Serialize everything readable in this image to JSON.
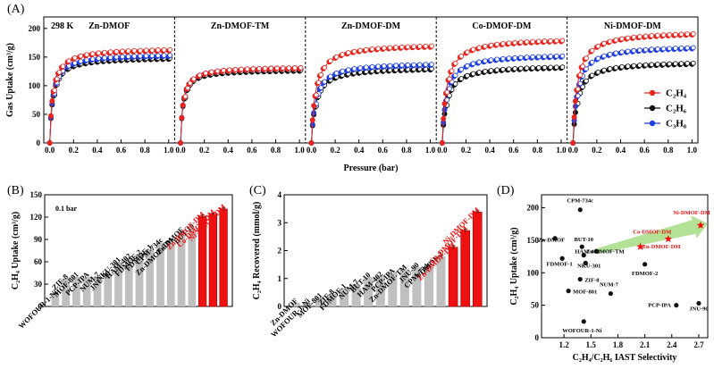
{
  "figure": {
    "panel_A_label": "(A)",
    "panel_B_label": "(B)",
    "panel_C_label": "(C)",
    "panel_D_label": "(D)"
  },
  "colors": {
    "C2H4": "#e8251f",
    "C2H6": "#111111",
    "C3H8": "#1f3fe0",
    "bar_gray": "#c0c0c0",
    "bar_red": "#ee1111",
    "highlight_text": "#ee1111",
    "arrow_green": "#a6dc82"
  },
  "chart_data": [
    {
      "id": "A",
      "type": "scatter",
      "temperature_label": "298 K",
      "xlabel": "Pressure (bar)",
      "ylabel": "Gas Uptake (cm³/g)",
      "xlim": [
        -0.05,
        1.05
      ],
      "ylim": [
        0,
        220
      ],
      "xticks": [
        "0.0",
        "0.2",
        "0.4",
        "0.6",
        "0.8",
        "1.0"
      ],
      "yticks": [
        "0",
        "50",
        "100",
        "150",
        "200"
      ],
      "legend": [
        {
          "label": "C₂H₄",
          "series": "C2H4"
        },
        {
          "label": "C₂H₆",
          "series": "C2H6"
        },
        {
          "label": "C₃H₈",
          "series": "C3H8"
        }
      ],
      "legend_position": "bottom-right",
      "subplots": [
        {
          "title": "Zn-DMOF",
          "isotherms": {
            "C2H4": {
              "q0": 0.02,
              "max": 165,
              "b": 40
            },
            "C2H6": {
              "q0": 0.02,
              "max": 150,
              "b": 40
            },
            "C3H8": {
              "q0": 0.02,
              "max": 155,
              "b": 40
            }
          }
        },
        {
          "title": "Zn-DMOF-TM",
          "isotherms": {
            "C2H4": {
              "q0": 0.02,
              "max": 132,
              "b": 50
            },
            "C2H6": {
              "q0": 0.02,
              "max": 128,
              "b": 50
            },
            "C3H8": {
              "q0": 0.02,
              "max": 132,
              "b": 50
            }
          }
        },
        {
          "title": "Zn-DMOF-DM",
          "isotherms": {
            "C2H4": {
              "q0": 0.02,
              "max": 173,
              "b": 30
            },
            "C2H6": {
              "q0": 0.02,
              "max": 132,
              "b": 30
            },
            "C3H8": {
              "q0": 0.02,
              "max": 140,
              "b": 30
            }
          }
        },
        {
          "title": "Co-DMOF-DM",
          "isotherms": {
            "C2H4": {
              "q0": 0.02,
              "max": 183,
              "b": 30
            },
            "C2H6": {
              "q0": 0.02,
              "max": 135,
              "b": 30
            },
            "C3H8": {
              "q0": 0.02,
              "max": 155,
              "b": 30
            }
          }
        },
        {
          "title": "Ni-DMOF-DM",
          "isotherms": {
            "C2H4": {
              "q0": 0.02,
              "max": 195,
              "b": 30
            },
            "C2H6": {
              "q0": 0.02,
              "max": 142,
              "b": 30
            },
            "C3H8": {
              "q0": 0.02,
              "max": 170,
              "b": 30
            }
          }
        }
      ],
      "pressure_points": [
        0.0,
        0.01,
        0.02,
        0.03,
        0.05,
        0.07,
        0.1,
        0.15,
        0.2,
        0.25,
        0.3,
        0.35,
        0.4,
        0.45,
        0.5,
        0.55,
        0.6,
        0.65,
        0.7,
        0.75,
        0.8,
        0.85,
        0.9,
        0.95,
        1.0
      ]
    },
    {
      "id": "B",
      "type": "bar",
      "annotation": "0.1 bar",
      "ylabel": "C₂H₄ Uptake (cm³/g)",
      "ylim": [
        0,
        150
      ],
      "yticks": [
        "0",
        "30",
        "60",
        "90",
        "120",
        "150"
      ],
      "categories": [
        "WOFOUR-1-Ni",
        "ZIF-8",
        "MOF-801",
        "PCP-IPA",
        "NUM-7",
        "JNU-90",
        "NKU-301",
        "HAM-402",
        "FDMOF-2",
        "FDMOF-1",
        "CPM-734c",
        "Zn-DMOF-TM",
        "Zn-DMOF",
        "BUT-10",
        "Zn-DMOF-DM",
        "Co-DMOF-DM",
        "Ni-DMOF-DM"
      ],
      "values": [
        16,
        37,
        40,
        40,
        40,
        42,
        60,
        65,
        70,
        77,
        86,
        86,
        100,
        105,
        121,
        124,
        131
      ],
      "errors": [
        0,
        0,
        0,
        0,
        0,
        0,
        0,
        0,
        0,
        0,
        0,
        0,
        0,
        0,
        2,
        1.5,
        2
      ],
      "highlight": [
        "Zn-DMOF-DM",
        "Co-DMOF-DM",
        "Ni-DMOF-DM"
      ]
    },
    {
      "id": "C",
      "type": "bar",
      "ylabel": "C₂H₄ Recovered (mmol/g)",
      "ylim": [
        0,
        4
      ],
      "yticks": [
        "0",
        "1",
        "2",
        "3",
        "4"
      ],
      "categories": [
        "Zn-DMOF",
        "WOFOUR-1-Ni",
        "MOF-801",
        "ZIF-8",
        "FDMOF-1",
        "NUM-7",
        "BUT-10",
        "HAM-402",
        "PCP-IPA",
        "Zn-DMOF-TM",
        "JNU-90",
        "CPM-734c",
        "FDMOF-2",
        "Zn-DMOF-DM",
        "Co-DMOF-DM",
        "Ni-DMOF-DM"
      ],
      "values": [
        0.12,
        0.12,
        0.32,
        0.45,
        0.65,
        0.8,
        1.05,
        1.08,
        1.2,
        1.33,
        1.4,
        1.45,
        1.8,
        2.12,
        2.72,
        3.38
      ],
      "errors": [
        0,
        0,
        0,
        0,
        0,
        0,
        0,
        0,
        0,
        0,
        0,
        0,
        0,
        0.06,
        0.06,
        0.05
      ],
      "highlight": [
        "Zn-DMOF-DM",
        "Co-DMOF-DM",
        "Ni-DMOF-DM"
      ]
    },
    {
      "id": "D",
      "type": "scatter",
      "xlabel": "C₂H₄/C₂H₆ IAST Selectivity",
      "ylabel": "C₂H₄ Uptake (cm³/g)",
      "xlim": [
        0.95,
        2.8
      ],
      "ylim": [
        0,
        220
      ],
      "xticks": [
        "1.2",
        "1.5",
        "1.8",
        "2.1",
        "2.4",
        "2.7"
      ],
      "xtick_values": [
        1.2,
        1.5,
        1.8,
        2.1,
        2.4,
        2.7
      ],
      "yticks": [
        "0",
        "50",
        "100",
        "150",
        "200"
      ],
      "ytick_values": [
        0,
        50,
        100,
        150,
        200
      ],
      "points": [
        {
          "name": "CPM-734c",
          "x": 1.38,
          "y": 197
        },
        {
          "name": "BUT-10",
          "x": 1.4,
          "y": 140
        },
        {
          "name": "Zn-DMOF",
          "x": 1.1,
          "y": 153
        },
        {
          "name": "Zn-DMOF-TM",
          "x": 1.56,
          "y": 133
        },
        {
          "name": "HAM-402",
          "x": 1.42,
          "y": 127
        },
        {
          "name": "NKU-301",
          "x": 1.44,
          "y": 115
        },
        {
          "name": "FDMOF-1",
          "x": 1.18,
          "y": 122
        },
        {
          "name": "ZIF-8",
          "x": 1.38,
          "y": 90
        },
        {
          "name": "MOF-801",
          "x": 1.25,
          "y": 72
        },
        {
          "name": "NUM-7",
          "x": 1.72,
          "y": 68
        },
        {
          "name": "FDMOF-2",
          "x": 2.1,
          "y": 113
        },
        {
          "name": "Zn-DMOF-DM",
          "x": 2.05,
          "y": 140
        },
        {
          "name": "Co-DMOF-DM",
          "x": 2.36,
          "y": 152
        },
        {
          "name": "Ni-DMOF-DM",
          "x": 2.72,
          "y": 173
        },
        {
          "name": "PCP-IPA",
          "x": 2.45,
          "y": 50
        },
        {
          "name": "JNU-90",
          "x": 2.7,
          "y": 53
        },
        {
          "name": "WOFOUR-1-Ni",
          "x": 1.42,
          "y": 25
        }
      ],
      "highlight": [
        "Zn-DMOF-DM",
        "Co-DMOF-DM",
        "Ni-DMOF-DM"
      ]
    }
  ]
}
